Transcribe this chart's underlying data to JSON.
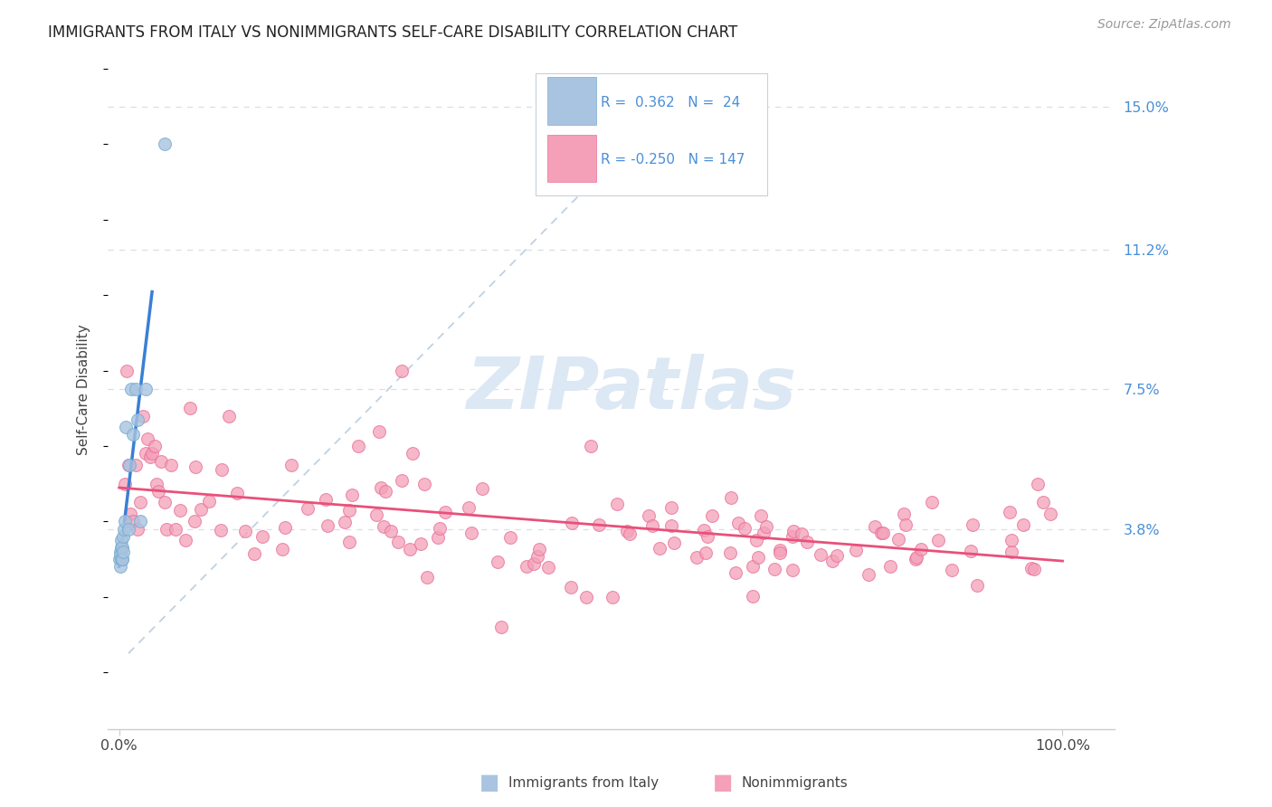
{
  "title": "IMMIGRANTS FROM ITALY VS NONIMMIGRANTS SELF-CARE DISABILITY CORRELATION CHART",
  "source": "Source: ZipAtlas.com",
  "ylabel": "Self-Care Disability",
  "color_blue": "#a8c4e0",
  "color_blue_edge": "#7aadd0",
  "color_pink": "#f4a0b8",
  "color_pink_edge": "#e8709a",
  "line_blue": "#3a7fd5",
  "line_pink": "#e8507a",
  "line_dashed": "#b8cce0",
  "watermark_color": "#dce8f4",
  "ytick_color": "#4a8fd8",
  "title_color": "#222222",
  "source_color": "#999999",
  "label_color": "#444444",
  "grid_color": "#d8dfe8",
  "spine_color": "#cccccc",
  "legend_edge_color": "#c8d0d8"
}
